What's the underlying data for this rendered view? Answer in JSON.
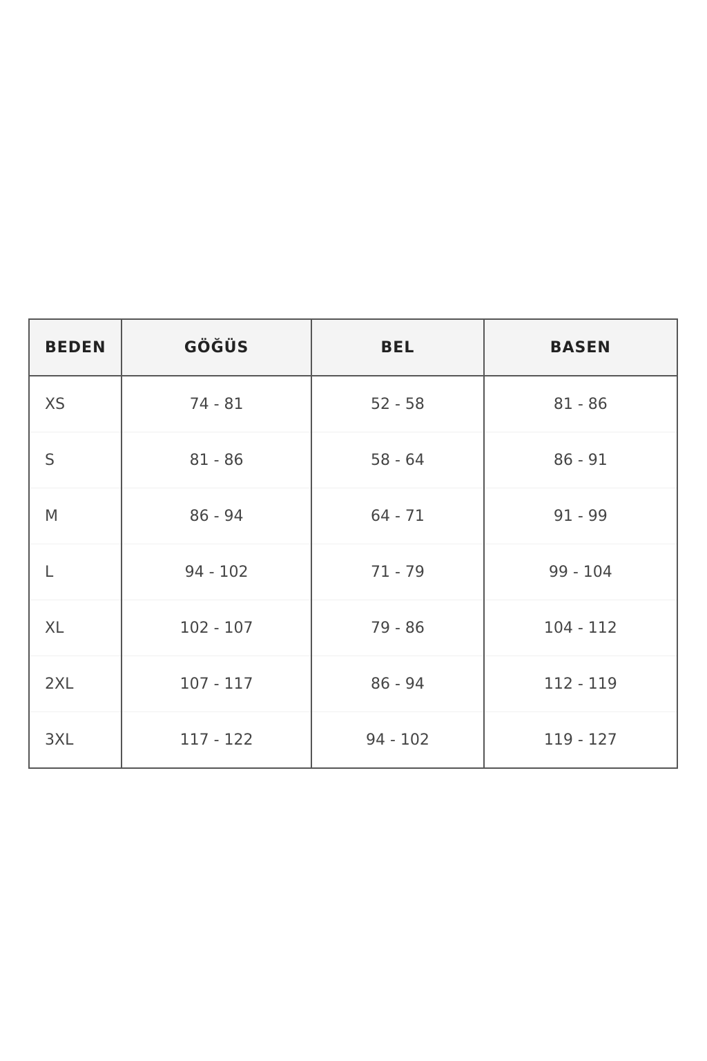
{
  "table": {
    "header": [
      "BEDEN",
      "GÖĞÜS",
      "BEL",
      "BASEN"
    ],
    "rows": [
      [
        "XS",
        "74 - 81",
        "52 - 58",
        "81 - 86"
      ],
      [
        "S",
        "81 - 86",
        "58 - 64",
        "86 - 91"
      ],
      [
        "M",
        "86 - 94",
        "64 - 71",
        "91 - 99"
      ],
      [
        "L",
        "94 - 102",
        "71 - 79",
        "99 - 104"
      ],
      [
        "XL",
        "102 - 107",
        "79 - 86",
        "104 - 112"
      ],
      [
        "2XL",
        "107 - 117",
        "86 - 94",
        "112 - 119"
      ],
      [
        "3XL",
        "117 - 122",
        "94 - 102",
        "119 - 127"
      ]
    ]
  }
}
